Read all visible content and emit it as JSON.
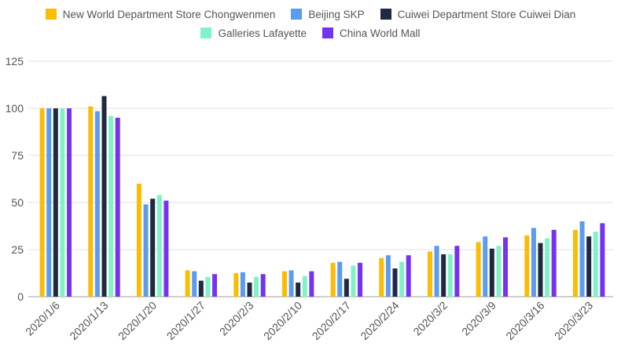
{
  "chart_data": {
    "type": "bar",
    "title": "",
    "xlabel": "",
    "ylabel": "",
    "ylim": [
      0,
      125
    ],
    "yticks": [
      0,
      25,
      50,
      75,
      100,
      125
    ],
    "grid": true,
    "legend_position": "top",
    "categories": [
      "2020/1/6",
      "2020/1/13",
      "2020/1/20",
      "2020/1/27",
      "2020/2/3",
      "2020/2/10",
      "2020/2/17",
      "2020/2/24",
      "2020/3/2",
      "2020/3/9",
      "2020/3/16",
      "2020/3/23"
    ],
    "series": [
      {
        "name": "New World Department Store Chongwenmen",
        "color": "#FBBC04",
        "values": [
          100,
          101,
          60,
          14,
          12.5,
          13.5,
          18,
          20.5,
          24,
          29,
          32.5,
          35.5
        ]
      },
      {
        "name": "Beijing SKP",
        "color": "#5B9BF0",
        "values": [
          100,
          98.5,
          49,
          13.5,
          13,
          14,
          18.5,
          22,
          27,
          32,
          36.5,
          40
        ]
      },
      {
        "name": "Cuiwei Department Store Cuiwei Dian",
        "color": "#1F2940",
        "values": [
          100,
          106.5,
          52,
          8.5,
          7.5,
          7.5,
          9.5,
          15,
          22.5,
          25.5,
          28.5,
          32
        ]
      },
      {
        "name": "Galleries Lafayette",
        "color": "#80F2C8",
        "values": [
          100,
          96,
          54,
          10.5,
          10.5,
          11,
          16.5,
          18.5,
          22.5,
          27,
          31,
          34.5
        ]
      },
      {
        "name": "China World Mall",
        "color": "#7433F0",
        "values": [
          100,
          95,
          51,
          12,
          12,
          13.5,
          18,
          22,
          27,
          31.5,
          35.5,
          39
        ]
      }
    ]
  }
}
